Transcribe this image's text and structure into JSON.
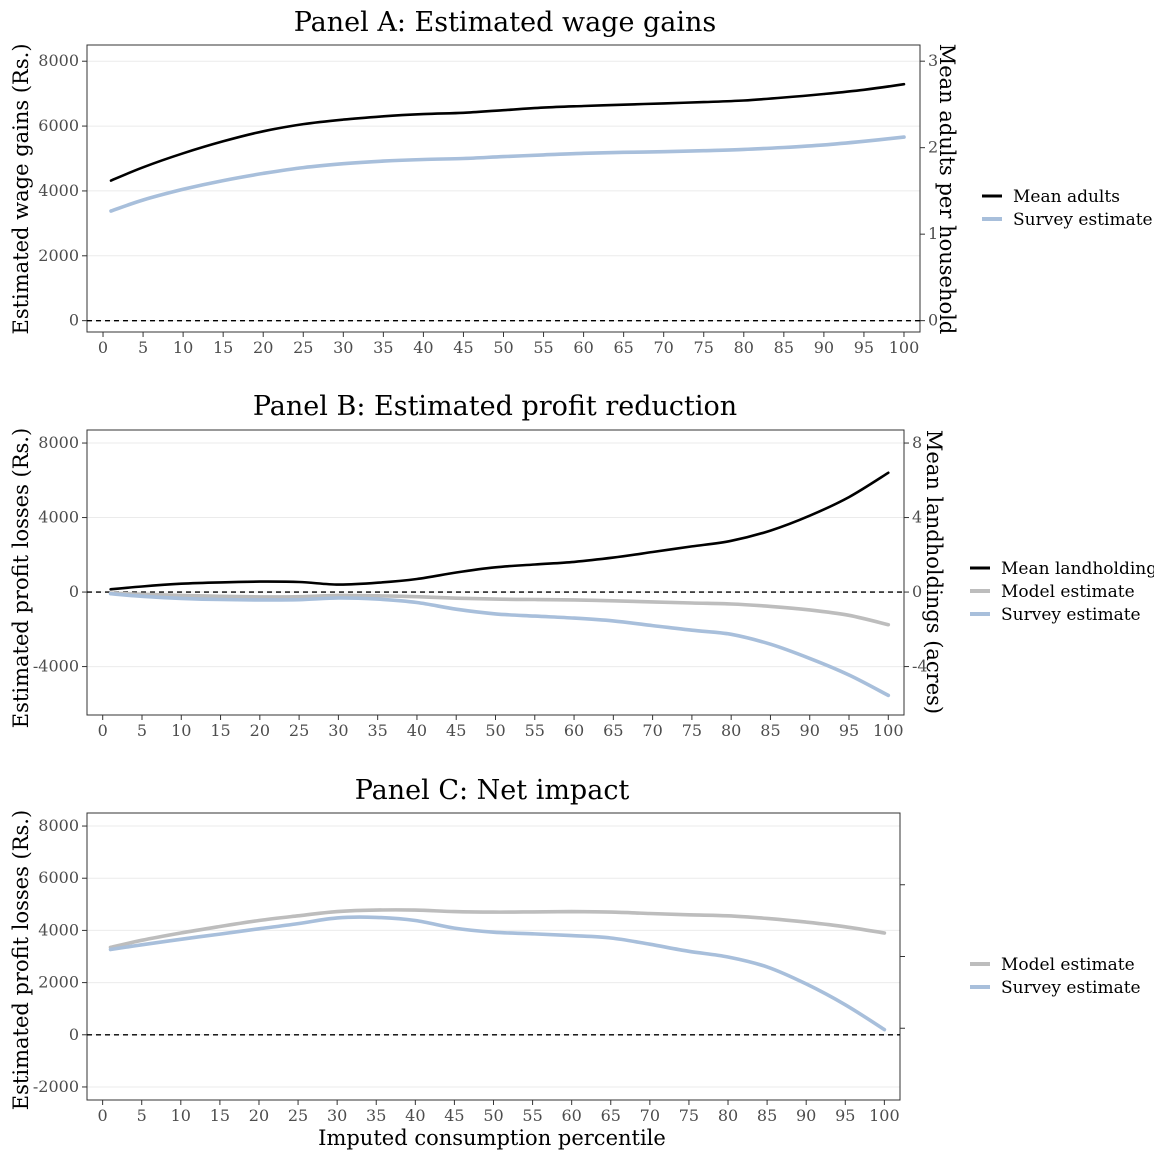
{
  "chart_data": [
    {
      "type": "line",
      "title": "Panel A: Estimated wage gains",
      "ylabel": "Estimated wage gains (Rs.)",
      "ylabel_right": "Mean adults per household",
      "xlabel": "",
      "ylim": [
        -350,
        8500
      ],
      "yticks": [
        0,
        2000,
        4000,
        6000,
        8000
      ],
      "yticks_right": [
        0,
        1,
        2,
        3
      ],
      "right_axis_scale": 2667,
      "x_ticks": [
        0,
        5,
        10,
        15,
        20,
        25,
        30,
        35,
        40,
        45,
        50,
        55,
        60,
        65,
        70,
        75,
        80,
        85,
        90,
        95,
        100
      ],
      "grid": true,
      "legend_position": "right",
      "series": [
        {
          "name": "Mean adults",
          "color": "#000000",
          "x": [
            1,
            5,
            10,
            15,
            20,
            25,
            30,
            35,
            40,
            45,
            50,
            55,
            60,
            65,
            70,
            75,
            80,
            85,
            90,
            95,
            100
          ],
          "values": [
            4320,
            4730,
            5160,
            5530,
            5840,
            6060,
            6200,
            6300,
            6370,
            6410,
            6490,
            6570,
            6620,
            6660,
            6700,
            6740,
            6790,
            6880,
            6990,
            7120,
            7290
          ]
        },
        {
          "name": "Survey estimate",
          "color": "#a8bfdb",
          "x": [
            1,
            5,
            10,
            15,
            20,
            25,
            30,
            35,
            40,
            45,
            50,
            55,
            60,
            65,
            70,
            75,
            80,
            85,
            90,
            95,
            100
          ],
          "values": [
            3380,
            3720,
            4050,
            4320,
            4540,
            4720,
            4840,
            4920,
            4970,
            5000,
            5060,
            5110,
            5160,
            5190,
            5210,
            5240,
            5280,
            5340,
            5420,
            5530,
            5660
          ]
        }
      ]
    },
    {
      "type": "line",
      "title": "Panel B: Estimated profit reduction",
      "ylabel": "Estimated profit losses (Rs.)",
      "ylabel_right": "Mean landholdings (acres)",
      "xlabel": "",
      "ylim": [
        -6600,
        8700
      ],
      "yticks": [
        -4000,
        0,
        4000,
        8000
      ],
      "yticks_right": [
        -4,
        0,
        4,
        8
      ],
      "right_axis_scale": 1000,
      "x_ticks": [
        0,
        5,
        10,
        15,
        20,
        25,
        30,
        35,
        40,
        45,
        50,
        55,
        60,
        65,
        70,
        75,
        80,
        85,
        90,
        95,
        100
      ],
      "grid": true,
      "legend_position": "right",
      "series": [
        {
          "name": "Mean landholding",
          "color": "#000000",
          "x": [
            1,
            5,
            10,
            15,
            20,
            25,
            30,
            35,
            40,
            45,
            50,
            55,
            60,
            65,
            70,
            75,
            80,
            85,
            90,
            95,
            100
          ],
          "values": [
            150,
            300,
            450,
            520,
            560,
            540,
            400,
            500,
            700,
            1050,
            1330,
            1480,
            1620,
            1850,
            2150,
            2450,
            2750,
            3300,
            4100,
            5100,
            6400
          ]
        },
        {
          "name": "Model estimate",
          "color": "#bdbdbd",
          "x": [
            1,
            5,
            10,
            15,
            20,
            25,
            30,
            35,
            40,
            45,
            50,
            55,
            60,
            65,
            70,
            75,
            80,
            85,
            90,
            95,
            100
          ],
          "values": [
            -60,
            -120,
            -180,
            -230,
            -260,
            -250,
            -180,
            -200,
            -250,
            -330,
            -380,
            -400,
            -420,
            -470,
            -530,
            -590,
            -640,
            -770,
            -960,
            -1250,
            -1750
          ]
        },
        {
          "name": "Survey estimate",
          "color": "#a8bfdb",
          "x": [
            1,
            5,
            10,
            15,
            20,
            25,
            30,
            35,
            40,
            45,
            50,
            55,
            60,
            65,
            70,
            75,
            80,
            85,
            90,
            95,
            100
          ],
          "values": [
            -90,
            -230,
            -340,
            -400,
            -420,
            -410,
            -320,
            -380,
            -560,
            -920,
            -1170,
            -1290,
            -1400,
            -1550,
            -1800,
            -2050,
            -2270,
            -2800,
            -3560,
            -4450,
            -5550
          ]
        }
      ]
    },
    {
      "type": "line",
      "title": "Panel C: Net impact",
      "ylabel": "Estimated profit losses (Rs.)",
      "xlabel": "Imputed consumption percentile",
      "ylim": [
        -2500,
        8500
      ],
      "yticks": [
        -2000,
        0,
        2000,
        4000,
        6000,
        8000
      ],
      "x_ticks": [
        0,
        5,
        10,
        15,
        20,
        25,
        30,
        35,
        40,
        45,
        50,
        55,
        60,
        65,
        70,
        75,
        80,
        85,
        90,
        95,
        100
      ],
      "grid": true,
      "legend_position": "right",
      "series": [
        {
          "name": "Model estimate",
          "color": "#bdbdbd",
          "x": [
            1,
            5,
            10,
            15,
            20,
            25,
            30,
            35,
            40,
            45,
            50,
            55,
            60,
            65,
            70,
            75,
            80,
            85,
            90,
            95,
            100
          ],
          "values": [
            3350,
            3620,
            3900,
            4150,
            4380,
            4560,
            4720,
            4780,
            4780,
            4720,
            4700,
            4710,
            4720,
            4700,
            4650,
            4600,
            4560,
            4460,
            4320,
            4140,
            3900
          ]
        },
        {
          "name": "Survey estimate",
          "color": "#a8bfdb",
          "x": [
            1,
            5,
            10,
            15,
            20,
            25,
            30,
            35,
            40,
            45,
            50,
            55,
            60,
            65,
            70,
            75,
            80,
            85,
            90,
            95,
            100
          ],
          "values": [
            3270,
            3450,
            3660,
            3860,
            4060,
            4260,
            4480,
            4500,
            4380,
            4090,
            3930,
            3870,
            3800,
            3710,
            3470,
            3200,
            2980,
            2600,
            1950,
            1150,
            200
          ]
        }
      ]
    }
  ]
}
